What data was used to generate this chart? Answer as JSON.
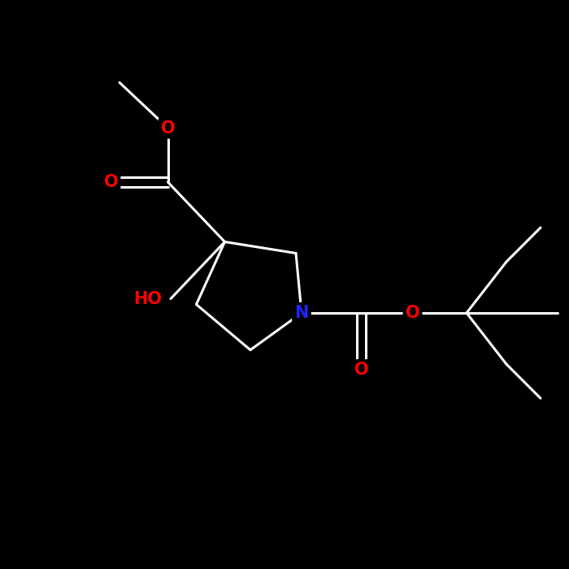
{
  "background_color": "#000000",
  "atom_colors": {
    "C": "#ffffff",
    "N": "#2222ff",
    "O": "#ff0000",
    "H": "#ffffff"
  },
  "bond_color": "#ffffff",
  "bond_width": 2.2,
  "figsize": [
    7.0,
    7.0
  ],
  "dpi": 100,
  "font_size": 15,
  "font_size_small": 13,
  "xlim": [
    0,
    10
  ],
  "ylim": [
    0,
    10
  ]
}
